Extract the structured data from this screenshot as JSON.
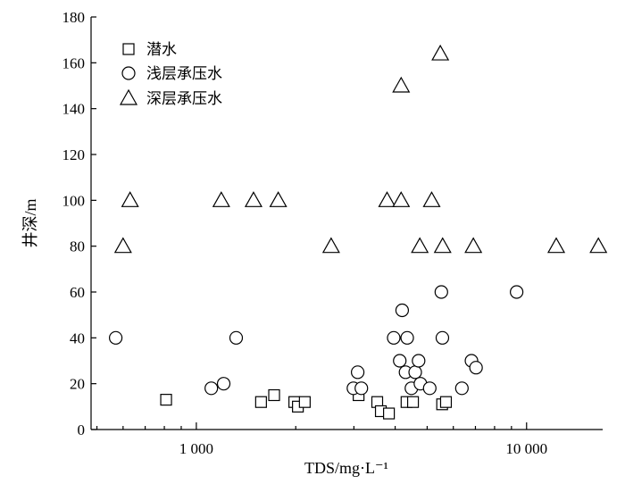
{
  "chart_data": {
    "type": "scatter",
    "xlabel": "TDS/mg·L⁻¹",
    "ylabel": "井深/m",
    "xscale": "log",
    "xlim": [
      480,
      17000
    ],
    "ylim": [
      0,
      180
    ],
    "xticks": [
      {
        "value": 1000,
        "label": "1 000"
      },
      {
        "value": 10000,
        "label": "10 000"
      }
    ],
    "xminor": [
      500,
      600,
      700,
      800,
      900,
      2000,
      3000,
      4000,
      5000,
      6000,
      7000,
      8000,
      9000
    ],
    "yticks": [
      0,
      20,
      40,
      60,
      80,
      100,
      120,
      140,
      160,
      180
    ],
    "legend_position": "top-left",
    "series": [
      {
        "name": "潜水",
        "marker": "square",
        "points": [
          {
            "x": 810,
            "y": 13
          },
          {
            "x": 1570,
            "y": 12
          },
          {
            "x": 1720,
            "y": 15
          },
          {
            "x": 1980,
            "y": 12
          },
          {
            "x": 2030,
            "y": 10
          },
          {
            "x": 2130,
            "y": 12
          },
          {
            "x": 3100,
            "y": 15
          },
          {
            "x": 3530,
            "y": 12
          },
          {
            "x": 3620,
            "y": 8
          },
          {
            "x": 3830,
            "y": 7
          },
          {
            "x": 4330,
            "y": 12
          },
          {
            "x": 4530,
            "y": 12
          },
          {
            "x": 5550,
            "y": 11
          },
          {
            "x": 5700,
            "y": 12
          }
        ]
      },
      {
        "name": "浅层承压水",
        "marker": "circle",
        "points": [
          {
            "x": 570,
            "y": 40
          },
          {
            "x": 1110,
            "y": 18
          },
          {
            "x": 1210,
            "y": 20
          },
          {
            "x": 1320,
            "y": 40
          },
          {
            "x": 2990,
            "y": 18
          },
          {
            "x": 3080,
            "y": 25
          },
          {
            "x": 3160,
            "y": 18
          },
          {
            "x": 3960,
            "y": 40
          },
          {
            "x": 4130,
            "y": 30
          },
          {
            "x": 4200,
            "y": 52
          },
          {
            "x": 4300,
            "y": 25
          },
          {
            "x": 4350,
            "y": 40
          },
          {
            "x": 4480,
            "y": 18
          },
          {
            "x": 4600,
            "y": 25
          },
          {
            "x": 4710,
            "y": 30
          },
          {
            "x": 4770,
            "y": 20
          },
          {
            "x": 5090,
            "y": 18
          },
          {
            "x": 5520,
            "y": 60
          },
          {
            "x": 5560,
            "y": 40
          },
          {
            "x": 6370,
            "y": 18
          },
          {
            "x": 6810,
            "y": 30
          },
          {
            "x": 7030,
            "y": 27
          },
          {
            "x": 9330,
            "y": 60
          }
        ]
      },
      {
        "name": "深层承压水",
        "marker": "triangle",
        "points": [
          {
            "x": 600,
            "y": 80
          },
          {
            "x": 630,
            "y": 100
          },
          {
            "x": 1190,
            "y": 100
          },
          {
            "x": 1490,
            "y": 100
          },
          {
            "x": 1770,
            "y": 100
          },
          {
            "x": 2560,
            "y": 80
          },
          {
            "x": 3780,
            "y": 100
          },
          {
            "x": 4170,
            "y": 100
          },
          {
            "x": 4170,
            "y": 150
          },
          {
            "x": 4750,
            "y": 80
          },
          {
            "x": 5160,
            "y": 100
          },
          {
            "x": 5480,
            "y": 164
          },
          {
            "x": 5570,
            "y": 80
          },
          {
            "x": 6900,
            "y": 80
          },
          {
            "x": 12300,
            "y": 80
          },
          {
            "x": 16500,
            "y": 80
          }
        ]
      }
    ]
  }
}
